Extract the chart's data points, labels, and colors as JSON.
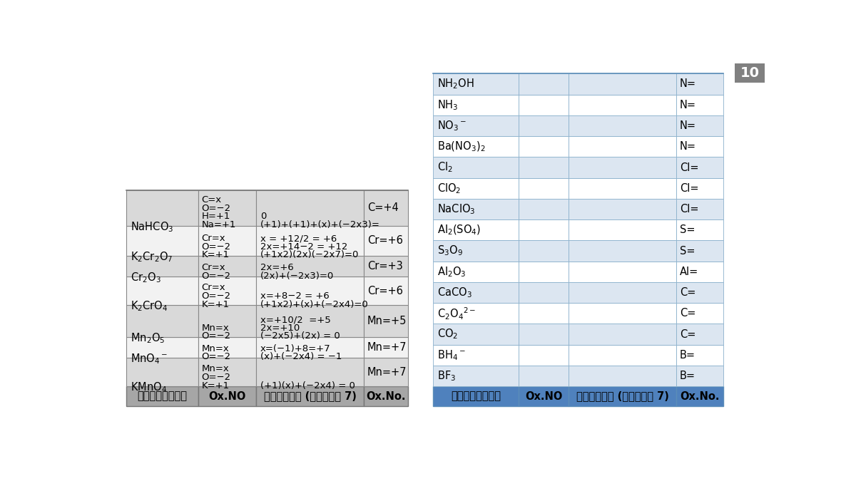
{
  "bg_color": "#ffffff",
  "page_num": "10",
  "left_table": {
    "header": [
      "สูตรเคมี",
      "Ox.NO",
      "แนวทาง (กฎข้อ 7)",
      "Ox.No."
    ],
    "header_bg": "#a6a6a6",
    "rows": [
      {
        "formula": "KMnO$_4$",
        "oxno": "K=+1\nO=−2\nMn=x",
        "method": "(+1)(x)+(−2x4) = 0",
        "result": "Mn=+7",
        "bg": "#d9d9d9"
      },
      {
        "formula": "MnO$_4$$^-$",
        "oxno": "O=−2\nMn=x",
        "method": "(x)+(−2x4) = −1\nx=(−1)+8=+7",
        "result": "Mn=+7",
        "bg": "#f2f2f2"
      },
      {
        "formula": "Mn$_2$O$_5$",
        "oxno": "O=−2\nMn=x",
        "method": "(−2x5)+(2x) = 0\n2x=+10\nx=+10/2  =+5",
        "result": "Mn=+5",
        "bg": "#d9d9d9"
      },
      {
        "formula": "K$_2$CrO$_4$",
        "oxno": "K=+1\nO=−2\nCr=x",
        "method": "(+1x2)+(x)+(−2x4)=0\nx=+8−2 = +6",
        "result": "Cr=+6",
        "bg": "#f2f2f2"
      },
      {
        "formula": "Cr$_2$O$_3$",
        "oxno": "O=−2\nCr=x",
        "method": "(2x)+(−2x3)=0\n2x=+6",
        "result": "Cr=+3",
        "bg": "#d9d9d9"
      },
      {
        "formula": "K$_2$Cr$_2$O$_7$",
        "oxno": "K=+1\nO=−2\nCr=x",
        "method": "(+1x2)(2x)(−2x7)=0\n2x=+14−2 = +12\nx = +12/2 = +6",
        "result": "Cr=+6",
        "bg": "#f2f2f2"
      },
      {
        "formula": "NaHCO$_3$",
        "oxno": "Na=+1\nH=+1\nO=−2\nC=x",
        "method": "(+1)+(+1)+(x)+(−2x3)=\n0",
        "result": "C=+4",
        "bg": "#d9d9d9"
      }
    ]
  },
  "right_table": {
    "header": [
      "สูตรเคมี",
      "Ox.NO",
      "แนวทาง (กฎข้อ 7)",
      "Ox.No."
    ],
    "header_bg": "#4f81bd",
    "rows": [
      {
        "formula": "BF$_3$",
        "result": "B=",
        "bg": "#dce6f1"
      },
      {
        "formula": "BH$_4$$^-$",
        "result": "B=",
        "bg": "#ffffff"
      },
      {
        "formula": "CO$_2$",
        "result": "C=",
        "bg": "#dce6f1"
      },
      {
        "formula": "C$_2$O$_4$$^{2-}$",
        "result": "C=",
        "bg": "#ffffff"
      },
      {
        "formula": "CaCO$_3$",
        "result": "C=",
        "bg": "#dce6f1"
      },
      {
        "formula": "Al$_2$O$_3$",
        "result": "Al=",
        "bg": "#ffffff"
      },
      {
        "formula": "S$_3$O$_9$",
        "result": "S=",
        "bg": "#dce6f1"
      },
      {
        "formula": "Al$_2$(SO$_4$)",
        "result": "S=",
        "bg": "#ffffff"
      },
      {
        "formula": "NaClO$_3$",
        "result": "Cl=",
        "bg": "#dce6f1"
      },
      {
        "formula": "ClO$_2$",
        "result": "Cl=",
        "bg": "#ffffff"
      },
      {
        "formula": "Cl$_2$",
        "result": "Cl=",
        "bg": "#dce6f1"
      },
      {
        "formula": "Ba(NO$_3$)$_2$",
        "result": "N=",
        "bg": "#ffffff"
      },
      {
        "formula": "NO$_3$$^-$",
        "result": "N=",
        "bg": "#dce6f1"
      },
      {
        "formula": "NH$_3$",
        "result": "N=",
        "bg": "#ffffff"
      },
      {
        "formula": "NH$_2$OH",
        "result": "N=",
        "bg": "#dce6f1"
      }
    ]
  }
}
